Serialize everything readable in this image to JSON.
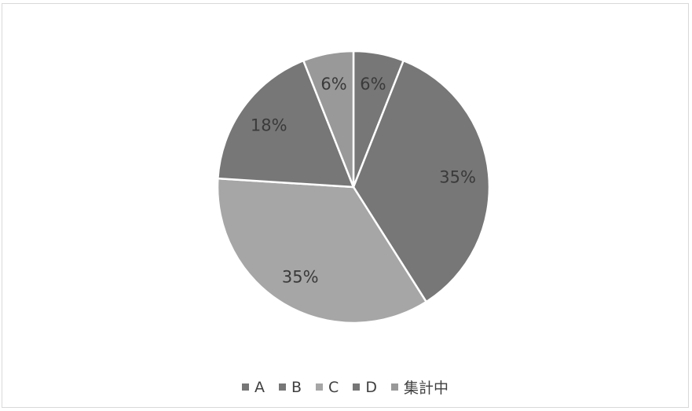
{
  "chart_data": {
    "type": "pie",
    "title": "",
    "slices": [
      {
        "name": "A",
        "value": 6,
        "label": "6%",
        "color": "#777777"
      },
      {
        "name": "B",
        "value": 35,
        "label": "35%",
        "color": "#777777"
      },
      {
        "name": "C",
        "value": 35,
        "label": "35%",
        "color": "#a6a6a6"
      },
      {
        "name": "D",
        "value": 18,
        "label": "18%",
        "color": "#777777"
      },
      {
        "name": "集計中",
        "value": 6,
        "label": "6%",
        "color": "#999999"
      }
    ],
    "start_angle_deg": 0,
    "direction": "clockwise",
    "legend_position": "bottom"
  }
}
